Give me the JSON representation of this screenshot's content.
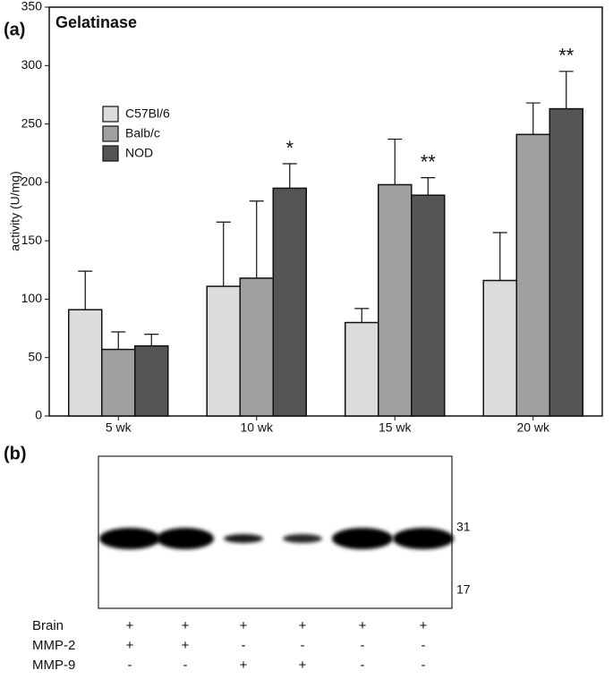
{
  "panel_labels": [
    "(a)",
    "(b)"
  ],
  "chart_data": {
    "type": "bar",
    "title": "Gelatinase",
    "y_label": "activity (U/mg)",
    "categories": [
      "5 wk",
      "10 wk",
      "15 wk",
      "20 wk"
    ],
    "series": [
      {
        "name": "C57Bl/6",
        "color": "#dcdcdc",
        "values": [
          91,
          111,
          80,
          116
        ],
        "errors": [
          33,
          55,
          12,
          41
        ]
      },
      {
        "name": "Balb/c",
        "color": "#a0a0a0",
        "values": [
          57,
          118,
          198,
          241
        ],
        "errors": [
          15,
          66,
          39,
          27
        ]
      },
      {
        "name": "NOD",
        "color": "#555555",
        "values": [
          60,
          195,
          189,
          263
        ],
        "errors": [
          10,
          21,
          15,
          32
        ]
      }
    ],
    "annotations": [
      {
        "label": "*",
        "category": "10 wk",
        "series": "NOD"
      },
      {
        "label": "**",
        "category": "15 wk",
        "series": "NOD"
      },
      {
        "label": "**",
        "category": "20 wk",
        "series": "NOD"
      }
    ],
    "ylim": [
      0,
      350
    ],
    "yticks": [
      0,
      50,
      100,
      150,
      200,
      250,
      300,
      350
    ]
  },
  "blot": {
    "markers": [
      "31",
      "17"
    ],
    "rows": [
      {
        "label": "Brain",
        "lanes": [
          "+",
          "+",
          "+",
          "+",
          "+",
          "+"
        ]
      },
      {
        "label": "MMP-2",
        "lanes": [
          "+",
          "+",
          "-",
          "-",
          "-",
          "-"
        ]
      },
      {
        "label": "MMP-9",
        "lanes": [
          "-",
          "-",
          "+",
          "+",
          "-",
          "-"
        ]
      }
    ]
  }
}
